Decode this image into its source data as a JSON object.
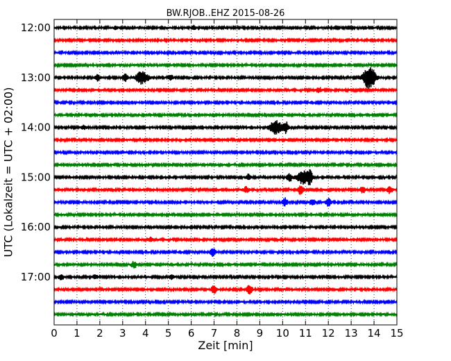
{
  "chart_data": {
    "type": "line",
    "title": "BW.RJOB..EHZ 2015-08-26",
    "xlabel": "Zeit  [min]",
    "ylabel": "UTC (Lokalzeit = UTC + 02:00)",
    "xlim": [
      0,
      15
    ],
    "xticks": [
      0,
      1,
      2,
      3,
      4,
      5,
      6,
      7,
      8,
      9,
      10,
      11,
      12,
      13,
      14,
      15
    ],
    "yticks": [
      "12:00",
      "13:00",
      "14:00",
      "15:00",
      "16:00",
      "17:00"
    ],
    "grid": "vertical dotted",
    "trace_colors": [
      "#000000",
      "#ff0000",
      "#0000ff",
      "#008000"
    ],
    "traces": [
      {
        "start": "12:00",
        "events": [
          {
            "t": 6.1,
            "amp": 3
          },
          {
            "t": 2.7,
            "amp": 2
          }
        ]
      },
      {
        "start": "12:15",
        "events": []
      },
      {
        "start": "12:30",
        "events": []
      },
      {
        "start": "12:45",
        "events": []
      },
      {
        "start": "13:00",
        "events": [
          {
            "t": 1.9,
            "amp": 4
          },
          {
            "t": 3.1,
            "amp": 5
          },
          {
            "t": 3.85,
            "amp": 9
          },
          {
            "t": 5.1,
            "amp": 4
          },
          {
            "t": 13.8,
            "amp": 17
          }
        ]
      },
      {
        "start": "13:15",
        "events": [
          {
            "t": 11.6,
            "amp": 4
          }
        ]
      },
      {
        "start": "13:30",
        "events": []
      },
      {
        "start": "13:45",
        "events": []
      },
      {
        "start": "14:00",
        "events": [
          {
            "t": 1.3,
            "amp": 3
          },
          {
            "t": 9.7,
            "amp": 10
          },
          {
            "t": 10.15,
            "amp": 8
          }
        ]
      },
      {
        "start": "14:15",
        "events": []
      },
      {
        "start": "14:30",
        "events": []
      },
      {
        "start": "14:45",
        "events": []
      },
      {
        "start": "15:00",
        "events": [
          {
            "t": 8.5,
            "amp": 4
          },
          {
            "t": 10.3,
            "amp": 6
          },
          {
            "t": 10.9,
            "amp": 10
          },
          {
            "t": 11.2,
            "amp": 8
          }
        ]
      },
      {
        "start": "15:15",
        "events": [
          {
            "t": 8.4,
            "amp": 4
          },
          {
            "t": 10.8,
            "amp": 7
          },
          {
            "t": 13.5,
            "amp": 5
          },
          {
            "t": 14.7,
            "amp": 5
          }
        ]
      },
      {
        "start": "15:30",
        "events": [
          {
            "t": 10.1,
            "amp": 6
          },
          {
            "t": 11.3,
            "amp": 5
          },
          {
            "t": 12.0,
            "amp": 6
          }
        ]
      },
      {
        "start": "15:45",
        "events": []
      },
      {
        "start": "16:00",
        "events": []
      },
      {
        "start": "16:15",
        "events": [
          {
            "t": 4.2,
            "amp": 3
          }
        ]
      },
      {
        "start": "16:30",
        "events": [
          {
            "t": 6.95,
            "amp": 6
          }
        ]
      },
      {
        "start": "16:45",
        "events": [
          {
            "t": 3.5,
            "amp": 5
          }
        ]
      },
      {
        "start": "17:00",
        "events": [
          {
            "t": 0.3,
            "amp": 4
          },
          {
            "t": 1.8,
            "amp": 3
          },
          {
            "t": 5.15,
            "amp": 3
          }
        ]
      },
      {
        "start": "17:15",
        "events": [
          {
            "t": 7.0,
            "amp": 6
          },
          {
            "t": 8.55,
            "amp": 7
          }
        ]
      },
      {
        "start": "17:30",
        "events": []
      },
      {
        "start": "17:45",
        "events": []
      }
    ]
  }
}
